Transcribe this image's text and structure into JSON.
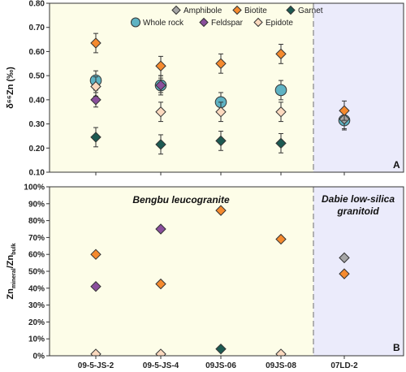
{
  "chart_data": [
    {
      "panel": "A",
      "type": "scatter",
      "ylabel": "δ⁶⁶Zn (‰)",
      "ylim": [
        0.1,
        0.8
      ],
      "yticks": [
        "0.10",
        "0.20",
        "0.30",
        "0.40",
        "0.50",
        "0.60",
        "0.70",
        "0.80"
      ],
      "categories": [
        "09-5-JS-2",
        "09-5-JS-4",
        "09JS-06",
        "09JS-08",
        "07LD-2"
      ],
      "legend": {
        "placement": "top",
        "entries": [
          "Amphibole",
          "Biotite",
          "Garnet",
          "Whole rock",
          "Feldspar",
          "Epidote"
        ]
      },
      "series": [
        {
          "name": "Amphibole",
          "marker": "diamond",
          "color": "#a6a6a6",
          "values": [
            null,
            null,
            null,
            null,
            0.32
          ],
          "err": 0.04
        },
        {
          "name": "Biotite",
          "marker": "diamond",
          "color": "#f58a2e",
          "values": [
            0.635,
            0.54,
            0.55,
            0.59,
            0.355
          ],
          "err": 0.04
        },
        {
          "name": "Garnet",
          "marker": "diamond",
          "color": "#1d5a52",
          "values": [
            0.245,
            0.215,
            0.23,
            0.22,
            null
          ],
          "err": 0.04
        },
        {
          "name": "Whole rock",
          "marker": "circle",
          "color": "#5fb3c3",
          "values": [
            0.48,
            0.46,
            0.39,
            0.44,
            0.315
          ],
          "err": 0.04
        },
        {
          "name": "Feldspar",
          "marker": "diamond",
          "color": "#8a4f9c",
          "values": [
            0.4,
            0.46,
            null,
            null,
            null
          ],
          "err": 0.03
        },
        {
          "name": "Epidote",
          "marker": "diamond",
          "color": "#fbd9be",
          "values": [
            0.455,
            0.35,
            0.35,
            0.35,
            null
          ],
          "err": 0.04
        }
      ],
      "panel_letter": "A"
    },
    {
      "panel": "B",
      "type": "scatter",
      "ylabel": "Zn_mineral/Zn_bulk",
      "ylabel_main_a": "Zn",
      "ylabel_sub_a": "mineral",
      "ylabel_main_b": "/Zn",
      "ylabel_sub_b": "bulk",
      "ylim": [
        0,
        100
      ],
      "yticks": [
        "0%",
        "10%",
        "20%",
        "30%",
        "40%",
        "50%",
        "60%",
        "70%",
        "80%",
        "90%",
        "100%"
      ],
      "categories": [
        "09-5-JS-2",
        "09-5-JS-4",
        "09JS-06",
        "09JS-08",
        "07LD-2"
      ],
      "series": [
        {
          "name": "Amphibole",
          "marker": "diamond",
          "color": "#a6a6a6",
          "values": [
            null,
            null,
            null,
            null,
            58
          ]
        },
        {
          "name": "Biotite",
          "marker": "diamond",
          "color": "#f58a2e",
          "values": [
            60,
            42.5,
            86,
            69,
            48.5
          ]
        },
        {
          "name": "Garnet",
          "marker": "diamond",
          "color": "#1d5a52",
          "values": [
            null,
            null,
            4,
            null,
            null
          ]
        },
        {
          "name": "Feldspar",
          "marker": "diamond",
          "color": "#8a4f9c",
          "values": [
            41,
            75,
            null,
            null,
            null
          ]
        },
        {
          "name": "Epidote",
          "marker": "diamond",
          "color": "#fbd9be",
          "values": [
            1,
            1,
            null,
            1,
            null
          ]
        }
      ],
      "group_labels": {
        "left": "Bengbu leucogranite",
        "right_line1": "Dabie low-silica",
        "right_line2": "granitoid"
      },
      "panel_letter": "B"
    }
  ],
  "colors": {
    "left_region_bg": "#fdfde8",
    "right_region_bg": "#ebebfb",
    "divider": "#9a9a9a"
  }
}
